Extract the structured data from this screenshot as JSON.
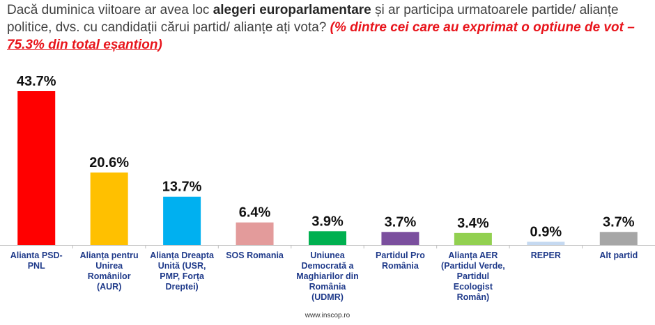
{
  "question": {
    "part1": "Dacă duminica viitoare ar avea loc ",
    "bold": "alegeri europarlamentare",
    "part2": " și ar participa urmatoarele partide/ alianțe politice, dvs. cu candidații cărui partid/ alianțe ați vota? ",
    "note": "(% dintre cei care au exprimat o optiune de vot – ",
    "note_underlined": "75.3% din total eșantion",
    "note_end": ")"
  },
  "footer": "www.inscop.ro",
  "chart_data": {
    "type": "bar",
    "title": "",
    "xlabel": "",
    "ylabel": "",
    "ylim": [
      0,
      45
    ],
    "grid": false,
    "legend": "none",
    "value_suffix": "%",
    "categories": [
      "Alianta PSD-PNL",
      "Alianța pentru Unirea Românilor (AUR)",
      "Alianța Dreapta Unită (USR, PMP, Forța Dreptei)",
      "SOS Romania",
      "Uniunea Democrată a Maghiarilor din România (UDMR)",
      "Partidul Pro România",
      "Alianța AER (Partidul Verde, Partidul Ecologist Român)",
      "REPER",
      "Alt partid"
    ],
    "category_lines": [
      [
        "Alianta PSD-",
        "PNL"
      ],
      [
        "Alianța pentru",
        "Unirea",
        "Românilor",
        "(AUR)"
      ],
      [
        "Alianța Dreapta",
        "Unită (USR,",
        "PMP, Forța",
        "Dreptei)"
      ],
      [
        "SOS Romania"
      ],
      [
        "Uniunea",
        "Democrată a",
        "Maghiarilor din",
        "România",
        "(UDMR)"
      ],
      [
        "Partidul Pro",
        "România"
      ],
      [
        "Alianța AER",
        "(Partidul Verde,",
        "Partidul",
        "Ecologist",
        "Român)"
      ],
      [
        "REPER"
      ],
      [
        "Alt partid"
      ]
    ],
    "values": [
      43.7,
      20.6,
      13.7,
      6.4,
      3.9,
      3.7,
      3.4,
      0.9,
      3.7
    ],
    "colors": [
      "#ff0000",
      "#ffc000",
      "#00b0f0",
      "#e39b9b",
      "#00b050",
      "#7b4f9e",
      "#92d050",
      "#c5d9f1",
      "#a6a6a6"
    ]
  }
}
